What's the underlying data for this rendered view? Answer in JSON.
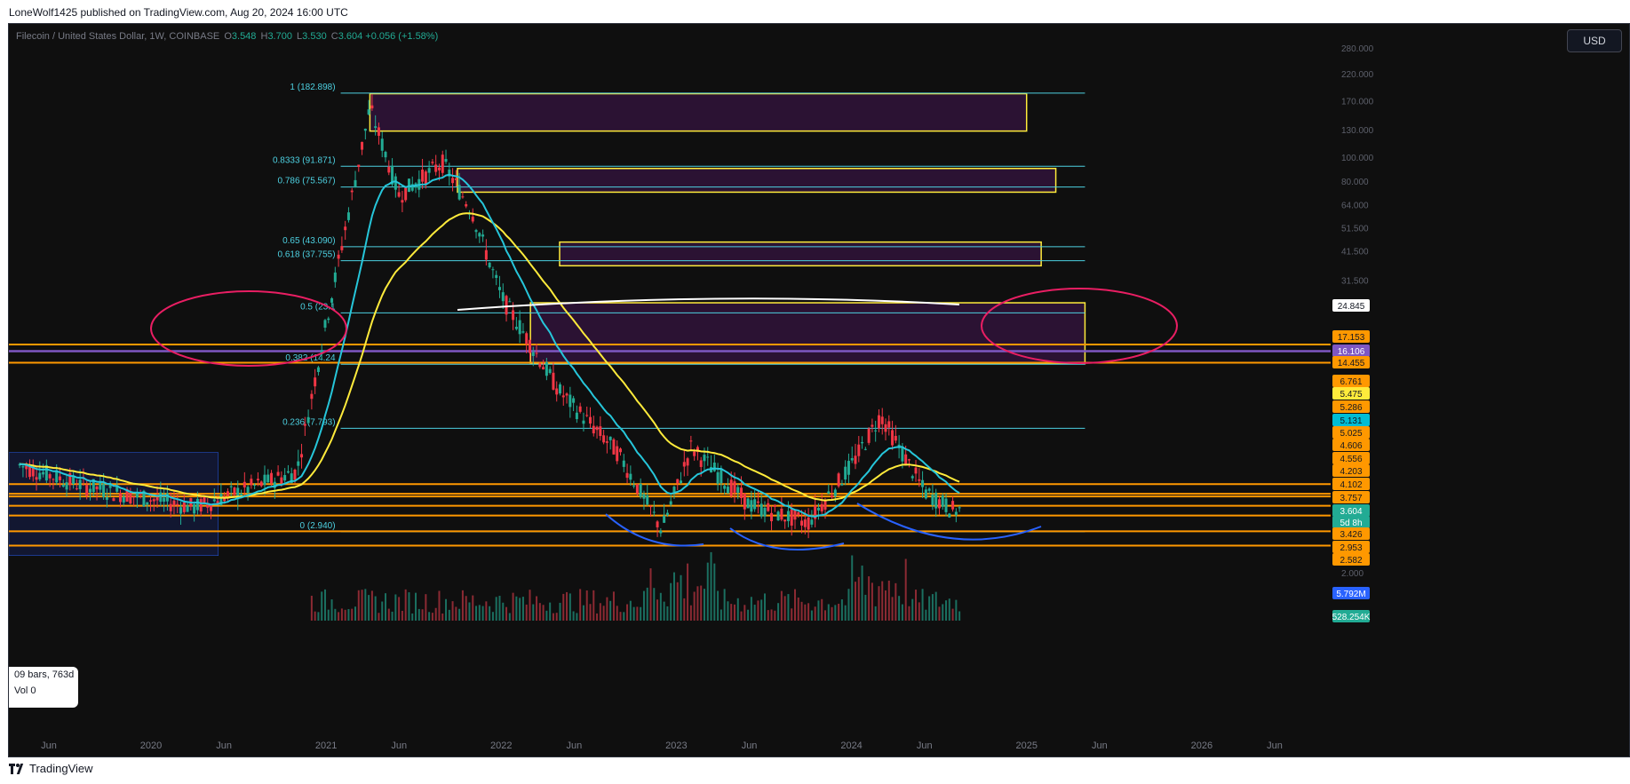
{
  "publisher": "LoneWolf1425 published on TradingView.com, Aug 20, 2024 16:00 UTC",
  "brand": "TradingView",
  "symbol": {
    "name": "Filecoin / United States Dollar, 1W, COINBASE",
    "o_key": "O",
    "o_val": "3.548",
    "h_key": "H",
    "h_val": "3.700",
    "l_key": "L",
    "l_val": "3.530",
    "c_key": "C",
    "c_val": "3.604",
    "change": "+0.056 (+1.58%)"
  },
  "currency": "USD",
  "bars_info": {
    "bars": "09 bars, 763d",
    "vol": "Vol 0"
  },
  "chart_data": {
    "type": "candlestick",
    "scale": "log",
    "ylim": [
      2.0,
      300.0
    ],
    "y_ticks": [
      "280.000",
      "220.000",
      "170.000",
      "130.000",
      "100.000",
      "80.000",
      "64.000",
      "51.500",
      "41.500",
      "31.500",
      "2.000"
    ],
    "x_ticks": [
      "Jun",
      "2020",
      "Jun",
      "2021",
      "Jun",
      "2022",
      "Jun",
      "2023",
      "Jun",
      "2024",
      "Jun",
      "2025",
      "Jun",
      "2026",
      "Jun"
    ],
    "fib_levels": [
      {
        "label": "1 (182.898)",
        "value": 182.898
      },
      {
        "label": "0.8333 (91.871)",
        "value": 91.871
      },
      {
        "label": "0.786 (75.567)",
        "value": 75.567
      },
      {
        "label": "0.65 (43.090)",
        "value": 43.09
      },
      {
        "label": "0.618 (37.755)",
        "value": 37.755
      },
      {
        "label": "0.5 (23.1",
        "value": 23.1
      },
      {
        "label": "0.382 (14.24",
        "value": 14.24
      },
      {
        "label": "0.236 (7.793)",
        "value": 7.793
      },
      {
        "label": "0 (2.940)",
        "value": 2.94
      }
    ],
    "horizontal_levels": [
      17.153,
      14.455,
      4.606,
      4.203,
      4.102,
      3.757,
      3.426,
      2.953,
      2.582
    ],
    "price_labels": [
      {
        "text": "24.845",
        "bg": "#ffffff",
        "fg": "#131722"
      },
      {
        "text": "17.153",
        "bg": "#ff9800",
        "fg": "#131722"
      },
      {
        "text": "16.106",
        "bg": "#7e57c2",
        "fg": "#ffffff"
      },
      {
        "text": "14.455",
        "bg": "#ff9800",
        "fg": "#131722"
      },
      {
        "text": "6.761",
        "bg": "#ff9800",
        "fg": "#131722"
      },
      {
        "text": "5.475",
        "bg": "#ffeb3b",
        "fg": "#131722"
      },
      {
        "text": "5.286",
        "bg": "#ff9800",
        "fg": "#131722"
      },
      {
        "text": "5.131",
        "bg": "#00bcd4",
        "fg": "#131722"
      },
      {
        "text": "5.025",
        "bg": "#ff9800",
        "fg": "#131722"
      },
      {
        "text": "4.606",
        "bg": "#ff9800",
        "fg": "#131722"
      },
      {
        "text": "4.556",
        "bg": "#ff9800",
        "fg": "#131722"
      },
      {
        "text": "4.203",
        "bg": "#ff9800",
        "fg": "#131722"
      },
      {
        "text": "4.102",
        "bg": "#ff9800",
        "fg": "#131722"
      },
      {
        "text": "3.757",
        "bg": "#ff9800",
        "fg": "#131722"
      },
      {
        "text": "3.604",
        "bg": "#22ab94",
        "fg": "#ffffff"
      },
      {
        "text": "5d 8h",
        "bg": "#22ab94",
        "fg": "#ffffff"
      },
      {
        "text": "3.426",
        "bg": "#ff9800",
        "fg": "#131722"
      },
      {
        "text": "2.953",
        "bg": "#ff9800",
        "fg": "#131722"
      },
      {
        "text": "2.582",
        "bg": "#ff9800",
        "fg": "#131722"
      },
      {
        "text": "5.792M",
        "bg": "#2962ff",
        "fg": "#ffffff"
      },
      {
        "text": "528.254K",
        "bg": "#22ab94",
        "fg": "#ffffff"
      }
    ],
    "price_path": [
      [
        "2019-04",
        5.5
      ],
      [
        "2019-08",
        4.6
      ],
      [
        "2019-12",
        4.1
      ],
      [
        "2020-04",
        3.7
      ],
      [
        "2020-08",
        4.5
      ],
      [
        "2020-11",
        5.2
      ],
      [
        "2021-01",
        21
      ],
      [
        "2021-04",
        160
      ],
      [
        "2021-06",
        70
      ],
      [
        "2021-09",
        95
      ],
      [
        "2021-11",
        60
      ],
      [
        "2022-01",
        27
      ],
      [
        "2022-05",
        11
      ],
      [
        "2022-09",
        6.2
      ],
      [
        "2022-12",
        3.0
      ],
      [
        "2023-02",
        6.5
      ],
      [
        "2023-06",
        3.8
      ],
      [
        "2023-10",
        3.2
      ],
      [
        "2024-01",
        5.5
      ],
      [
        "2024-03",
        8.8
      ],
      [
        "2024-06",
        4.3
      ],
      [
        "2024-08",
        3.6
      ]
    ],
    "colors": {
      "up": "#22ab94",
      "down": "#f23645",
      "fib": "#4dd0e1",
      "level": "#ff9800",
      "zone_border": "#ffeb3b",
      "zone_fill": "#2b1233",
      "ema_fast": "#26c6da",
      "ema_slow": "#ffeb3b",
      "circle": "#e91e63",
      "curve": "#2962ff"
    }
  }
}
